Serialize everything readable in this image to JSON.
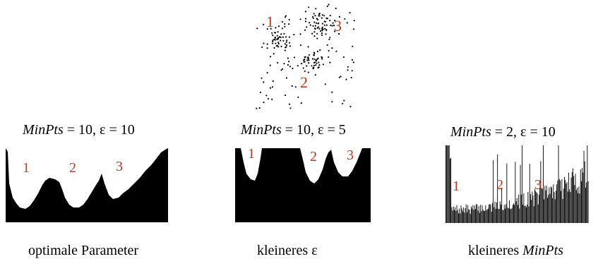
{
  "scatter": {
    "cluster_labels": [
      "1",
      "2",
      "3"
    ]
  },
  "panels": [
    {
      "param_name": "MinPts",
      "param_rest": " = 10, ε = 10",
      "plot_labels": [
        "1",
        "2",
        "3"
      ],
      "caption_text": "optimale Parameter",
      "caption_italic": ""
    },
    {
      "param_name": "MinPts",
      "param_rest": " = 10, ε = 5",
      "plot_labels": [
        "1",
        "2",
        "3"
      ],
      "caption_text": "kleineres ε",
      "caption_italic": ""
    },
    {
      "param_name": "MinPts",
      "param_rest": " = 2, ε = 10",
      "plot_labels": [
        "1",
        "2",
        "3"
      ],
      "caption_text": "kleineres ",
      "caption_italic": "MinPts"
    }
  ]
}
